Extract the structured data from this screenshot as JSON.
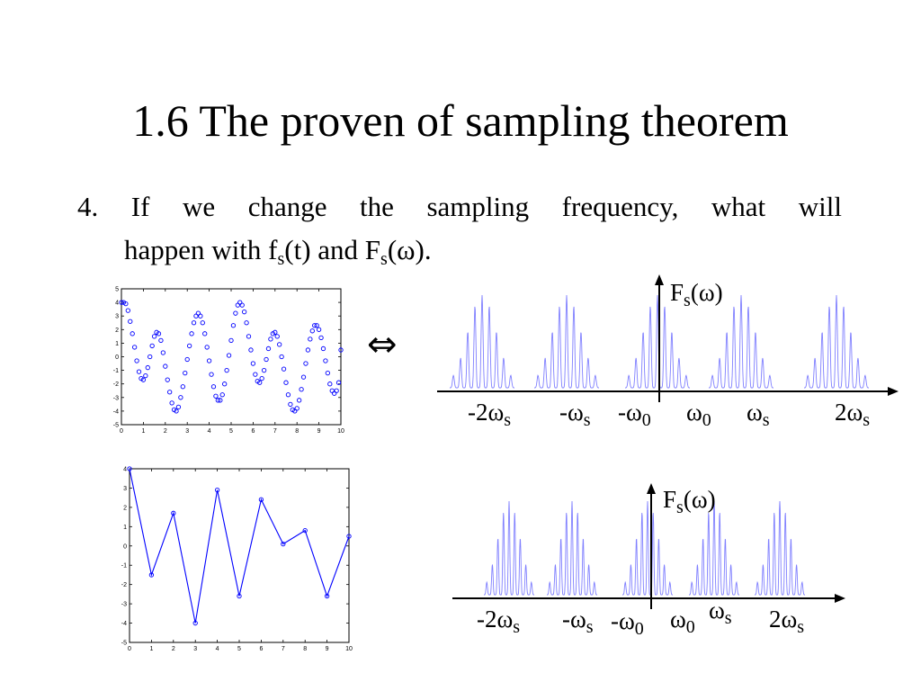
{
  "title": "1.6 The proven of sampling theorem",
  "bullet": {
    "line1_words": [
      "4.",
      "If",
      "we",
      "change",
      "the",
      "sampling",
      "frequency,",
      "what",
      "will"
    ],
    "line2": {
      "pre": "happen with f",
      "sub1": "s",
      "mid": "(t) and F",
      "sub2": "s",
      "post": "(ω)."
    }
  },
  "equivalence_symbol": "⇔",
  "spectrum_labels": {
    "top": [
      {
        "pre": "-2ω",
        "sub": "s"
      },
      {
        "pre": "-ω",
        "sub": "s"
      },
      {
        "pre": "-ω",
        "sub": "0"
      },
      {
        "pre": "ω",
        "sub": "0"
      },
      {
        "pre": "ω",
        "sub": "s"
      },
      {
        "pre": "2ω",
        "sub": "s"
      }
    ],
    "top_axis": {
      "pre": "F",
      "sub": "s",
      "post": "(ω)"
    },
    "bottom": [
      {
        "pre": "-2ω",
        "sub": "s"
      },
      {
        "pre": "-ω",
        "sub": "s"
      },
      {
        "pre": "-ω",
        "sub": "0"
      },
      {
        "pre": "ω",
        "sub": "0"
      },
      {
        "pre": "ω",
        "sub": "s"
      },
      {
        "pre": "2ω",
        "sub": "s"
      }
    ],
    "bottom_axis": {
      "pre": "F",
      "sub": "s",
      "post": "(ω)"
    }
  },
  "chart_data": [
    {
      "type": "scatter",
      "xlim": [
        0,
        10
      ],
      "ylim": [
        -5,
        5
      ],
      "xticks": [
        "0",
        "1",
        "2",
        "3",
        "4",
        "5",
        "6",
        "7",
        "8",
        "9",
        "10"
      ],
      "yticks": [
        "5",
        "4",
        "3",
        "2",
        "1",
        "0",
        "-1",
        "-2",
        "-3",
        "-4",
        "-5"
      ],
      "x": [
        0.0,
        0.1,
        0.2,
        0.3,
        0.4,
        0.5,
        0.6,
        0.7,
        0.8,
        0.9,
        1.0,
        1.1,
        1.2,
        1.3,
        1.4,
        1.5,
        1.6,
        1.7,
        1.8,
        1.9,
        2.0,
        2.1,
        2.2,
        2.3,
        2.4,
        2.5,
        2.6,
        2.7,
        2.8,
        2.9,
        3.0,
        3.1,
        3.2,
        3.3,
        3.4,
        3.5,
        3.6,
        3.7,
        3.8,
        3.9,
        4.0,
        4.1,
        4.2,
        4.3,
        4.4,
        4.5,
        4.6,
        4.7,
        4.8,
        4.9,
        5.0,
        5.1,
        5.2,
        5.3,
        5.4,
        5.5,
        5.6,
        5.7,
        5.8,
        5.9,
        6.0,
        6.1,
        6.2,
        6.3,
        6.4,
        6.5,
        6.6,
        6.7,
        6.8,
        6.9,
        7.0,
        7.1,
        7.2,
        7.3,
        7.4,
        7.5,
        7.6,
        7.7,
        7.8,
        7.9,
        8.0,
        8.1,
        8.2,
        8.3,
        8.4,
        8.5,
        8.6,
        8.7,
        8.8,
        8.9,
        9.0,
        9.1,
        9.2,
        9.3,
        9.4,
        9.5,
        9.6,
        9.7,
        9.8,
        9.9,
        10.0
      ],
      "y": [
        4.0,
        4.0,
        3.9,
        3.4,
        2.6,
        1.7,
        0.7,
        -0.3,
        -1.1,
        -1.6,
        -1.7,
        -1.4,
        -0.8,
        0.0,
        0.8,
        1.5,
        1.8,
        1.7,
        1.2,
        0.3,
        -0.7,
        -1.7,
        -2.6,
        -3.4,
        -3.9,
        -4.0,
        -3.7,
        -3.0,
        -2.2,
        -1.2,
        -0.2,
        0.8,
        1.7,
        2.5,
        3.0,
        3.2,
        3.0,
        2.5,
        1.7,
        0.7,
        -0.3,
        -1.3,
        -2.2,
        -2.9,
        -3.2,
        -3.2,
        -2.8,
        -2.0,
        -1.0,
        0.1,
        1.2,
        2.3,
        3.2,
        3.8,
        4.0,
        3.8,
        3.3,
        2.5,
        1.5,
        0.5,
        -0.5,
        -1.3,
        -1.8,
        -1.9,
        -1.6,
        -1.0,
        -0.2,
        0.6,
        1.3,
        1.7,
        1.8,
        1.5,
        0.9,
        0.0,
        -0.9,
        -1.9,
        -2.8,
        -3.5,
        -3.9,
        -4.0,
        -3.8,
        -3.2,
        -2.4,
        -1.5,
        -0.5,
        0.5,
        1.3,
        1.9,
        2.3,
        2.3,
        2.0,
        1.4,
        0.6,
        -0.3,
        -1.2,
        -2.0,
        -2.5,
        -2.7,
        -2.5,
        -1.9,
        0.5
      ]
    },
    {
      "type": "line",
      "xlim": [
        0,
        10
      ],
      "ylim": [
        -5,
        4
      ],
      "xticks": [
        "0",
        "1",
        "2",
        "3",
        "4",
        "5",
        "6",
        "7",
        "8",
        "9",
        "10"
      ],
      "yticks": [
        "4",
        "3",
        "2",
        "1",
        "0",
        "-1",
        "-2",
        "-3",
        "-4",
        "-5"
      ],
      "x": [
        0,
        1,
        2,
        3,
        4,
        5,
        6,
        7,
        8,
        9,
        10
      ],
      "y": [
        4.0,
        -1.5,
        1.7,
        -4.0,
        2.9,
        -2.6,
        2.4,
        0.1,
        0.8,
        -2.6,
        0.5
      ]
    }
  ]
}
